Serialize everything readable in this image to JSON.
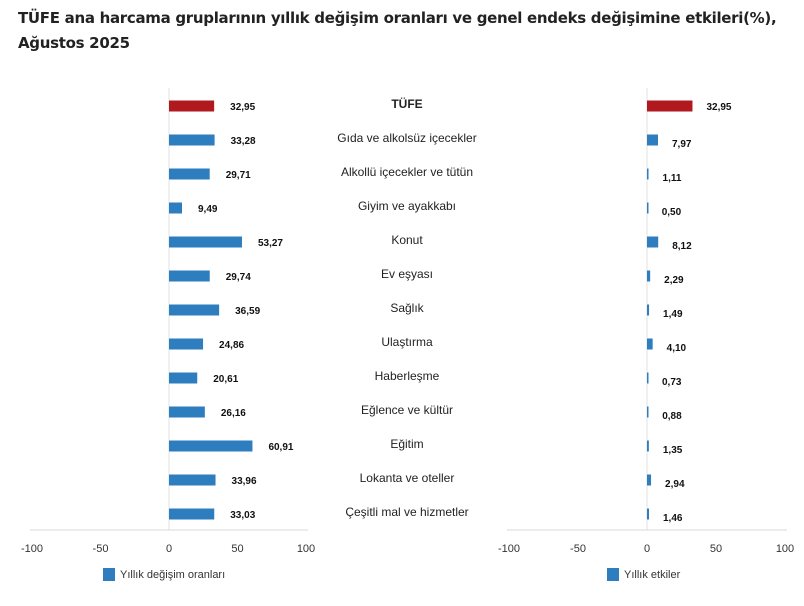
{
  "title": "TÜFE ana harcama gruplarının yıllık değişim oranları ve genel endeks değişimine etkileri(%), Ağustos 2025",
  "chart_data": [
    {
      "type": "bar",
      "orientation": "horizontal",
      "categories": [
        "TÜFE",
        "Gıda ve alkolsüz içecekler",
        "Alkollü içecekler ve tütün",
        "Giyim ve ayakkabı",
        "Konut",
        "Ev eşyası",
        "Sağlık",
        "Ulaştırma",
        "Haberleşme",
        "Eğlence ve kültür",
        "Eğitim",
        "Lokanta ve oteller",
        "Çeşitli mal ve hizmetler"
      ],
      "series": [
        {
          "name": "Yıllık değişim oranları",
          "values": [
            32.95,
            33.28,
            29.71,
            9.49,
            53.27,
            29.74,
            36.59,
            24.86,
            20.61,
            26.16,
            60.91,
            33.96,
            33.03
          ],
          "labels": [
            "32,95",
            "33,28",
            "29,71",
            "9,49",
            "53,27",
            "29,74",
            "36,59",
            "24,86",
            "20,61",
            "26,16",
            "60,91",
            "33,96",
            "33,03"
          ]
        }
      ],
      "xlim": [
        -100,
        100
      ],
      "xticks": [
        "-100",
        "-50",
        "0",
        "50",
        "100"
      ],
      "legend": "bottom-left",
      "colors": {
        "highlight": "#b0191e",
        "bar": "#2e7ebf"
      }
    },
    {
      "type": "bar",
      "orientation": "horizontal",
      "series": [
        {
          "name": "Yıllık etkiler",
          "values": [
            32.95,
            7.97,
            1.11,
            0.5,
            8.12,
            2.29,
            1.49,
            4.1,
            0.73,
            0.88,
            1.35,
            2.94,
            1.46
          ],
          "labels": [
            "32,95",
            "7,97",
            "1,11",
            "0,50",
            "8,12",
            "2,29",
            "1,49",
            "4,10",
            "0,73",
            "0,88",
            "1,35",
            "2,94",
            "1,46"
          ]
        }
      ],
      "xlim": [
        -100,
        100
      ],
      "xticks": [
        "-100",
        "-50",
        "0",
        "50",
        "100"
      ],
      "legend": "bottom-right",
      "colors": {
        "highlight": "#b0191e",
        "bar": "#2e7ebf"
      }
    }
  ]
}
